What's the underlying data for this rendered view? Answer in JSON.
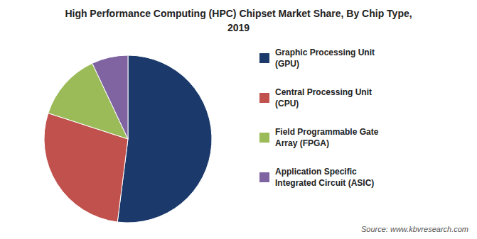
{
  "chart_data": {
    "type": "pie",
    "title": "High Performance Computing (HPC) Chipset Market Share, By Chip Type,",
    "subtitle": "2019",
    "categories": [
      "Graphic Processing Unit\n(GPU)",
      "Central Processing Unit\n(CPU)",
      "Field Programmable Gate\nArray (FPGA)",
      "Application Specific\nIntegrated Circuit (ASIC)"
    ],
    "values": [
      52,
      28,
      13,
      7
    ],
    "colors": [
      "#1b3a6b",
      "#c0514d",
      "#9bbb59",
      "#8064a2"
    ],
    "legend": "right",
    "annotations": [
      "Source: www.kbvresearch.com"
    ]
  }
}
